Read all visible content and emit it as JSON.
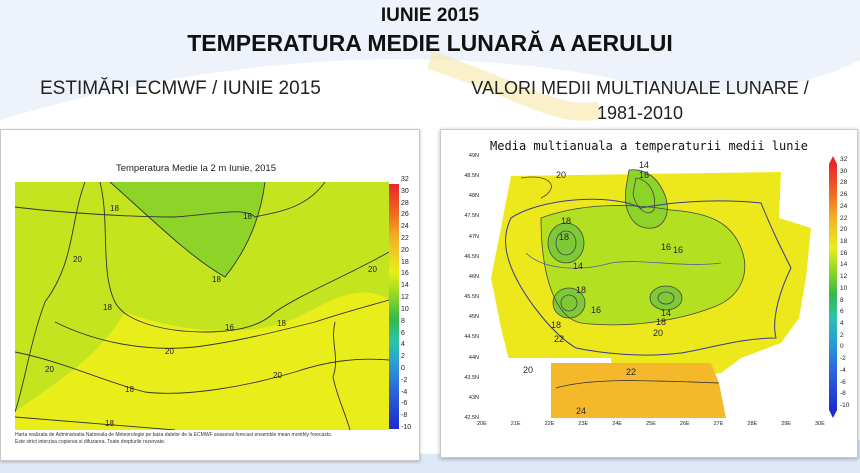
{
  "header": {
    "month_line": "IUNIE 2015",
    "main_title": "TEMPERATURA MEDIE LUNARĂ A AERULUI",
    "left_subtitle": "ESTIMĂRI ECMWF / IUNIE 2015",
    "right_subtitle_line1": "VALORI MEDII MULTIANUALE LUNARE /",
    "right_subtitle_line2": "1981-2010"
  },
  "left_map": {
    "title": "Temperatura Medie la 2 m Iunie, 2015",
    "credit_line1": "Harta realizata de Administratia Nationala de Meteorologie pe baza datelor de la ECMWF seasonal forecast ensemble mean monthly forecasts.",
    "credit_line2": "Este strict interzisa copierea si difuzarea. Toate drepturile rezervate.",
    "colorbar_ticks": [
      "32",
      "30",
      "28",
      "26",
      "24",
      "22",
      "20",
      "18",
      "16",
      "14",
      "12",
      "10",
      "8",
      "6",
      "4",
      "2",
      "0",
      "-2",
      "-4",
      "-6",
      "-8",
      "-10"
    ],
    "contour_labels": [
      "18",
      "18",
      "20",
      "18",
      "18",
      "16",
      "20",
      "20",
      "20",
      "18",
      "18",
      "20",
      "18"
    ],
    "colors": {
      "fill_yellow": "#e9ee1a",
      "fill_lightgreen": "#bfe61f",
      "fill_green": "#8ed428"
    }
  },
  "right_map": {
    "title": "Media multianuala a temperaturii medii lunie",
    "colorbar_ticks": [
      "32",
      "30",
      "28",
      "26",
      "24",
      "22",
      "20",
      "18",
      "16",
      "14",
      "12",
      "10",
      "8",
      "6",
      "4",
      "2",
      "0",
      "-2",
      "-4",
      "-6",
      "-8",
      "-10"
    ],
    "lat_ticks": [
      "49N",
      "48.5N",
      "48N",
      "47.5N",
      "47N",
      "46.5N",
      "46N",
      "45.5N",
      "45N",
      "44.5N",
      "44N",
      "43.5N",
      "43N",
      "42.5N"
    ],
    "lon_ticks": [
      "20E",
      "21E",
      "22E",
      "23E",
      "24E",
      "25E",
      "26E",
      "27E",
      "28E",
      "29E",
      "30E"
    ],
    "contour_labels": [
      "14",
      "16",
      "20",
      "18",
      "18",
      "16",
      "16",
      "14",
      "18",
      "16",
      "14",
      "18",
      "18",
      "20",
      "20",
      "22",
      "22",
      "24"
    ],
    "colors": {
      "fill_yellow": "#ece81c",
      "fill_orange": "#f5b82a",
      "fill_green": "#b4e022"
    }
  }
}
